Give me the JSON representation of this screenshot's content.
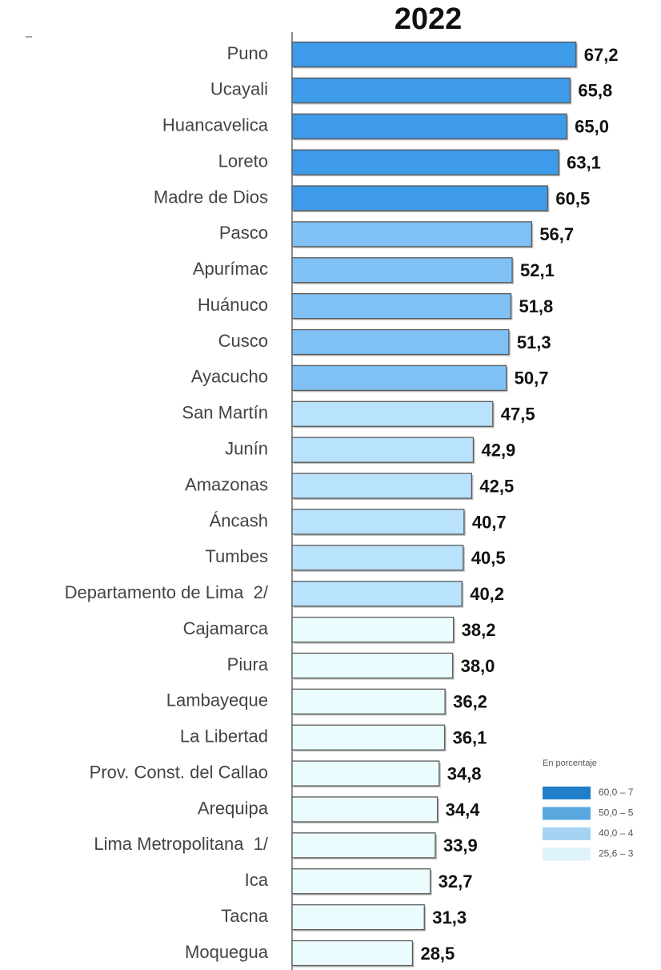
{
  "chart_data": {
    "type": "bar",
    "orientation": "horizontal",
    "title": "2022",
    "categories": [
      "Puno",
      "Ucayali",
      "Huancavelica",
      "Loreto",
      "Madre de Dios",
      "Pasco",
      "Apurímac",
      "Huánuco",
      "Cusco",
      "Ayacucho",
      "San Martín",
      "Junín",
      "Amazonas",
      "Áncash",
      "Tumbes",
      "Departamento de Lima  2/",
      "Cajamarca",
      "Piura",
      "Lambayeque",
      "La Libertad",
      "Prov. Const. del Callao",
      "Arequipa",
      "Lima Metropolitana  1/",
      "Ica",
      "Tacna",
      "Moquegua"
    ],
    "values": [
      67.2,
      65.8,
      65.0,
      63.1,
      60.5,
      56.7,
      52.1,
      51.8,
      51.3,
      50.7,
      47.5,
      42.9,
      42.5,
      40.7,
      40.5,
      40.2,
      38.2,
      38.0,
      36.2,
      36.1,
      34.8,
      34.4,
      33.9,
      32.7,
      31.3,
      28.5
    ],
    "value_labels": [
      "67,2",
      "65,8",
      "65,0",
      "63,1",
      "60,5",
      "56,7",
      "52,1",
      "51,8",
      "51,3",
      "50,7",
      "47,5",
      "42,9",
      "42,5",
      "40,7",
      "40,5",
      "40,2",
      "38,2",
      "38,0",
      "36,2",
      "36,1",
      "34,8",
      "34,4",
      "33,9",
      "32,7",
      "31,3",
      "28,5"
    ],
    "colors": [
      "#3d9be9",
      "#3d9be9",
      "#3d9be9",
      "#3d9be9",
      "#3d9be9",
      "#7fc1f5",
      "#7fc1f5",
      "#7fc1f5",
      "#7fc1f5",
      "#7fc1f5",
      "#b9e2fc",
      "#b9e2fc",
      "#b9e2fc",
      "#b9e2fc",
      "#b9e2fc",
      "#b9e2fc",
      "#eafcfe",
      "#eafcfe",
      "#eafcfe",
      "#eafcfe",
      "#eafcfe",
      "#eafcfe",
      "#eafcfe",
      "#eafcfe",
      "#eafcfe",
      "#eafcfe"
    ],
    "xlim": [
      0,
      86
    ],
    "legend": {
      "title": "En porcentaje",
      "items": [
        {
          "label": "60,0 – 7",
          "color": "#1f7fc8"
        },
        {
          "label": "50,0 – 5",
          "color": "#5aa7e0"
        },
        {
          "label": "40,0 – 4",
          "color": "#a6d3f1"
        },
        {
          "label": "25,6 – 3",
          "color": "#dff3fb"
        }
      ]
    }
  }
}
